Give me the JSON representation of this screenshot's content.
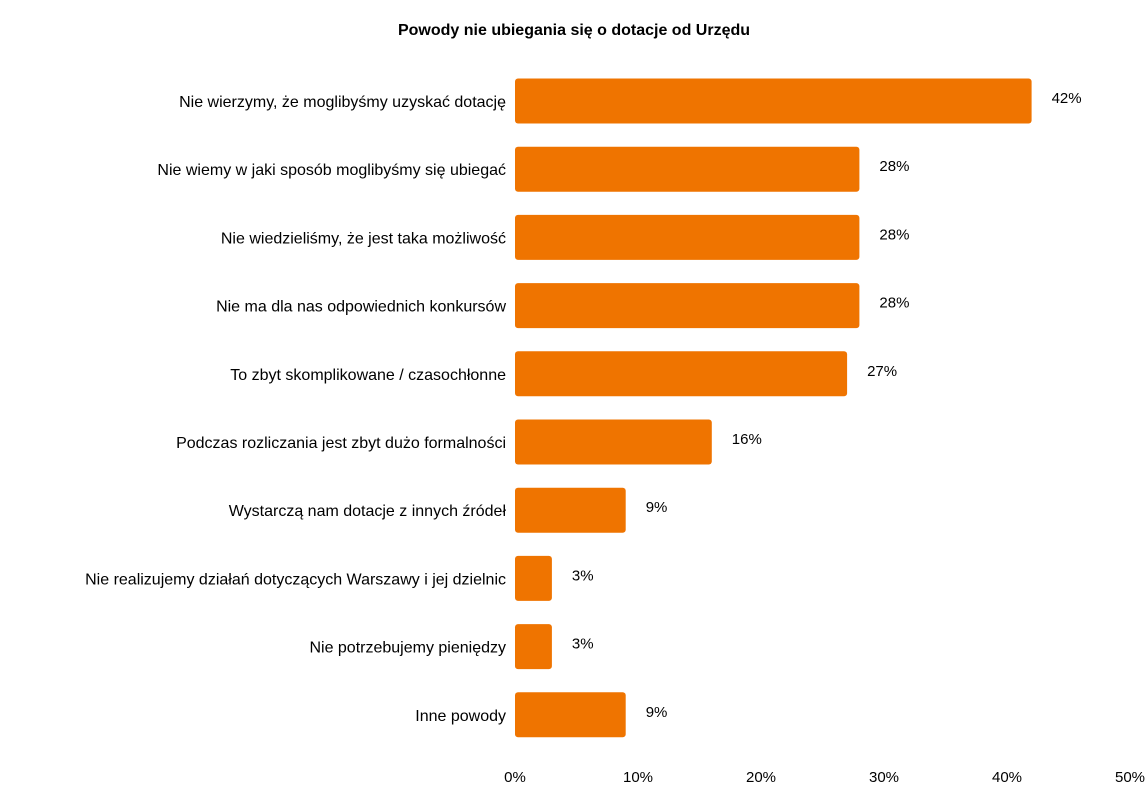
{
  "chart_data": {
    "type": "bar",
    "orientation": "horizontal",
    "title": "Powody nie ubiegania się o dotacje od Urzędu",
    "categories": [
      "Nie wierzymy, że moglibyśmy uzyskać dotację",
      "Nie wiemy w jaki sposób moglibyśmy się ubiegać",
      "Nie wiedzieliśmy, że jest taka możliwość",
      "Nie ma dla nas odpowiednich konkursów",
      "To zbyt skomplikowane / czasochłonne",
      "Podczas rozliczania jest zbyt dużo formalności",
      "Wystarczą nam dotacje z innych źródeł",
      "Nie realizujemy działań dotyczących Warszawy i jej dzielnic",
      "Nie potrzebujemy pieniędzy",
      "Inne powody"
    ],
    "values": [
      42,
      28,
      28,
      28,
      27,
      16,
      9,
      3,
      3,
      9
    ],
    "value_labels": [
      "42%",
      "28%",
      "28%",
      "28%",
      "27%",
      "16%",
      "9%",
      "3%",
      "3%",
      "9%"
    ],
    "xlim": [
      0,
      50
    ],
    "x_ticks": [
      0,
      10,
      20,
      30,
      40,
      50
    ],
    "x_tick_labels": [
      "0%",
      "10%",
      "20%",
      "30%",
      "40%",
      "50%"
    ],
    "xlabel": "",
    "ylabel": "",
    "grid": false,
    "legend": "none",
    "bar_color": "#EF7400"
  }
}
